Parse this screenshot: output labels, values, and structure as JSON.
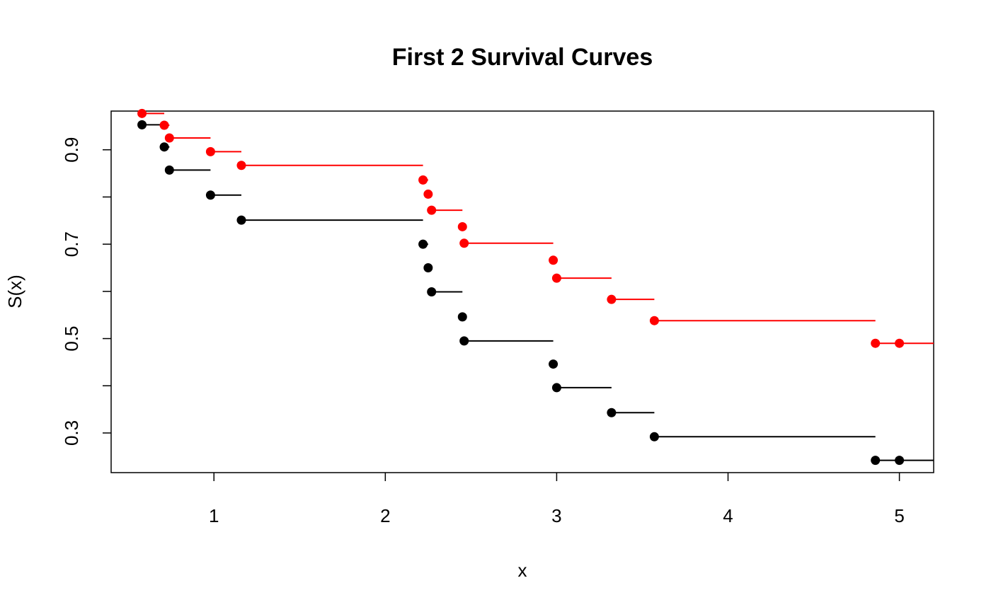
{
  "chart_data": {
    "type": "line",
    "title": "First 2 Survival Curves",
    "xlabel": "x",
    "ylabel": "S(x)",
    "xlim": [
      0.4,
      5.2
    ],
    "ylim": [
      0.216,
      0.982
    ],
    "x_ticks": [
      {
        "value": 1,
        "label": "1"
      },
      {
        "value": 2,
        "label": "2"
      },
      {
        "value": 3,
        "label": "3"
      },
      {
        "value": 4,
        "label": "4"
      },
      {
        "value": 5,
        "label": "5"
      }
    ],
    "y_ticks": [
      {
        "value": 0.3,
        "label": "0.3"
      },
      {
        "value": 0.4,
        "label": ""
      },
      {
        "value": 0.5,
        "label": "0.5"
      },
      {
        "value": 0.6,
        "label": ""
      },
      {
        "value": 0.7,
        "label": "0.7"
      },
      {
        "value": 0.8,
        "label": ""
      },
      {
        "value": 0.9,
        "label": "0.9"
      }
    ],
    "grid": false,
    "legend": "none",
    "series": [
      {
        "color": "#000000",
        "points": [
          {
            "x": 0.58,
            "y": 0.953
          },
          {
            "x": 0.71,
            "y": 0.906
          },
          {
            "x": 0.74,
            "y": 0.857
          },
          {
            "x": 0.98,
            "y": 0.804
          },
          {
            "x": 1.16,
            "y": 0.751
          },
          {
            "x": 2.22,
            "y": 0.7
          },
          {
            "x": 2.25,
            "y": 0.65
          },
          {
            "x": 2.27,
            "y": 0.599
          },
          {
            "x": 2.45,
            "y": 0.546
          },
          {
            "x": 2.46,
            "y": 0.495
          },
          {
            "x": 2.98,
            "y": 0.446
          },
          {
            "x": 3.0,
            "y": 0.396
          },
          {
            "x": 3.32,
            "y": 0.343
          },
          {
            "x": 3.57,
            "y": 0.292
          },
          {
            "x": 4.86,
            "y": 0.242
          },
          {
            "x": 5.0,
            "y": 0.242
          }
        ]
      },
      {
        "color": "#ff0000",
        "points": [
          {
            "x": 0.58,
            "y": 0.977
          },
          {
            "x": 0.71,
            "y": 0.952
          },
          {
            "x": 0.74,
            "y": 0.925
          },
          {
            "x": 0.98,
            "y": 0.896
          },
          {
            "x": 1.16,
            "y": 0.867
          },
          {
            "x": 2.22,
            "y": 0.836
          },
          {
            "x": 2.25,
            "y": 0.806
          },
          {
            "x": 2.27,
            "y": 0.772
          },
          {
            "x": 2.45,
            "y": 0.737
          },
          {
            "x": 2.46,
            "y": 0.702
          },
          {
            "x": 2.98,
            "y": 0.666
          },
          {
            "x": 3.0,
            "y": 0.628
          },
          {
            "x": 3.32,
            "y": 0.583
          },
          {
            "x": 3.57,
            "y": 0.538
          },
          {
            "x": 4.86,
            "y": 0.49
          },
          {
            "x": 5.0,
            "y": 0.49
          }
        ]
      }
    ]
  }
}
